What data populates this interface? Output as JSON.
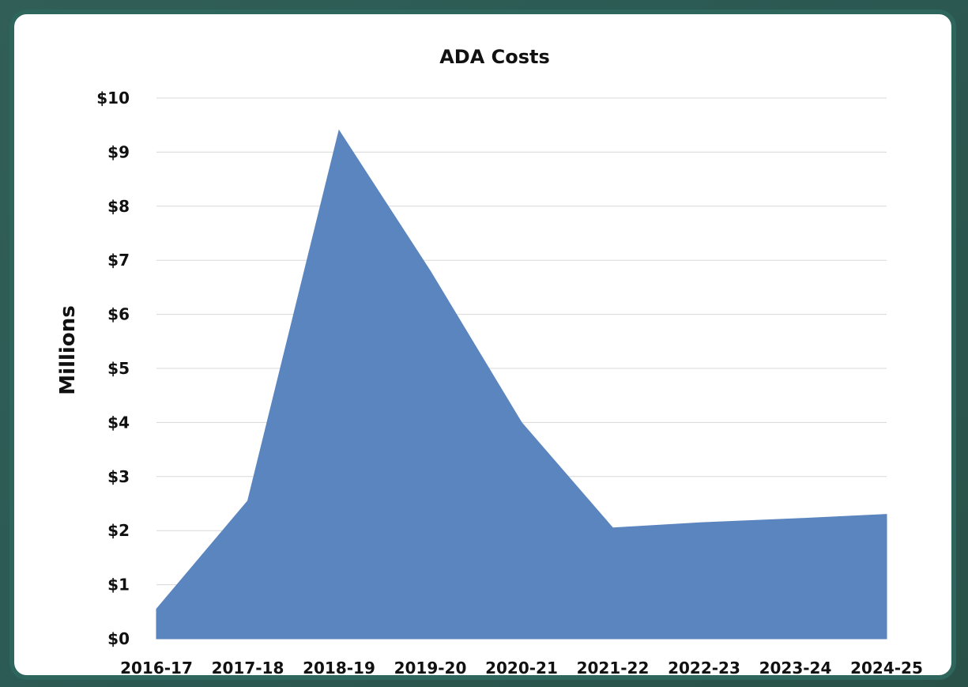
{
  "chart_data": {
    "type": "area",
    "title": "ADA Costs",
    "xlabel": "",
    "ylabel": "Millions",
    "categories": [
      "2016-17",
      "2017-18",
      "2018-19",
      "2019-20",
      "2020-21",
      "2021-22",
      "2022-23",
      "2023-24",
      "2024-25"
    ],
    "values": [
      0.55,
      2.55,
      9.4,
      6.8,
      4.0,
      2.05,
      2.15,
      2.22,
      2.3
    ],
    "ylim": [
      0,
      10
    ],
    "y_ticks": [
      "$0",
      "$1",
      "$2",
      "$3",
      "$4",
      "$5",
      "$6",
      "$7",
      "$8",
      "$9",
      "$10"
    ],
    "grid": true,
    "colors": {
      "area": "#5b85bf",
      "frame": "#2e655d",
      "background": "#ffffff"
    }
  }
}
